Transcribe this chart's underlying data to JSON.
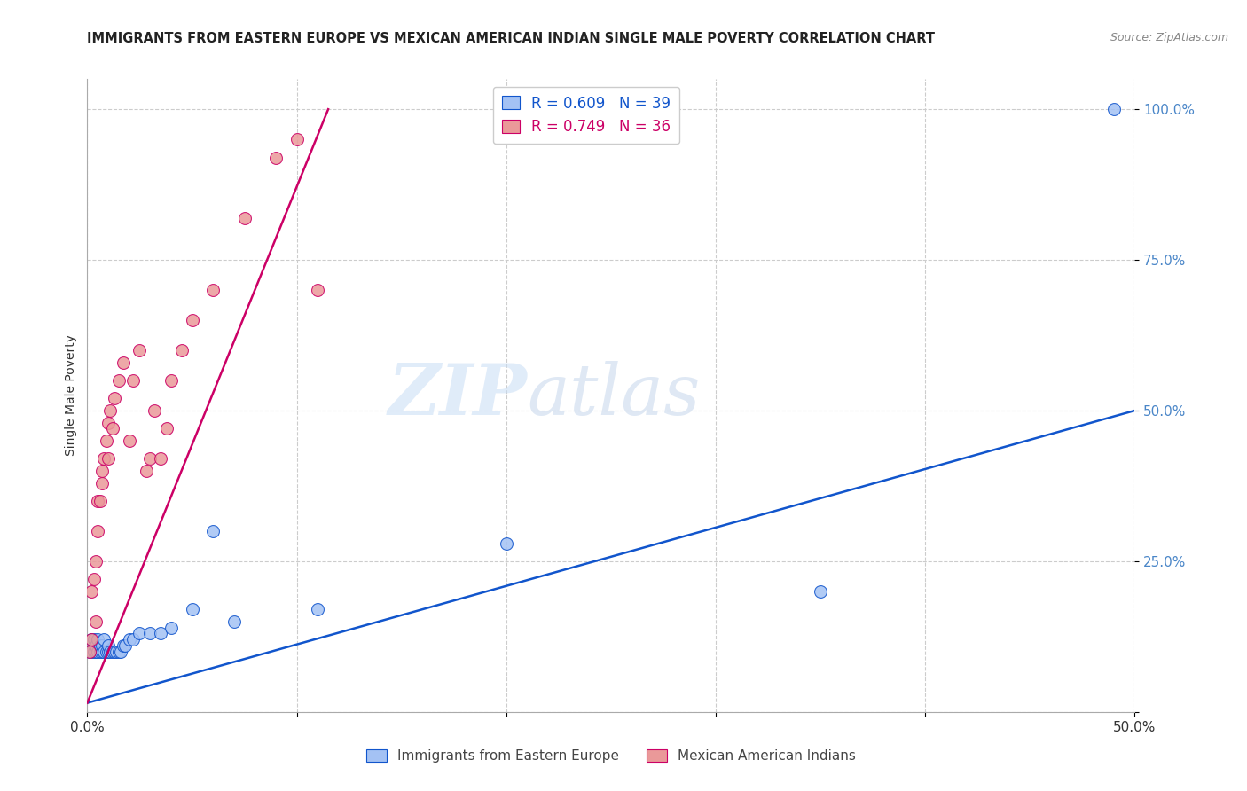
{
  "title": "IMMIGRANTS FROM EASTERN EUROPE VS MEXICAN AMERICAN INDIAN SINGLE MALE POVERTY CORRELATION CHART",
  "source": "Source: ZipAtlas.com",
  "ylabel": "Single Male Poverty",
  "xlim": [
    0.0,
    0.5
  ],
  "ylim": [
    0.0,
    1.05
  ],
  "watermark_zip": "ZIP",
  "watermark_atlas": "atlas",
  "legend_blue_label": "R = 0.609   N = 39",
  "legend_pink_label": "R = 0.749   N = 36",
  "legend_label_blue": "Immigrants from Eastern Europe",
  "legend_label_pink": "Mexican American Indians",
  "blue_color": "#a4c2f4",
  "pink_color": "#ea9999",
  "line_blue_color": "#1155cc",
  "line_pink_color": "#cc0066",
  "tick_color": "#4a86c8",
  "blue_scatter_x": [
    0.001,
    0.002,
    0.002,
    0.003,
    0.003,
    0.004,
    0.004,
    0.005,
    0.005,
    0.006,
    0.006,
    0.007,
    0.007,
    0.008,
    0.008,
    0.009,
    0.01,
    0.01,
    0.011,
    0.012,
    0.013,
    0.014,
    0.015,
    0.016,
    0.017,
    0.018,
    0.02,
    0.022,
    0.025,
    0.03,
    0.035,
    0.04,
    0.05,
    0.06,
    0.07,
    0.11,
    0.2,
    0.35,
    0.49
  ],
  "blue_scatter_y": [
    0.1,
    0.1,
    0.12,
    0.1,
    0.12,
    0.1,
    0.11,
    0.1,
    0.12,
    0.1,
    0.11,
    0.1,
    0.11,
    0.1,
    0.12,
    0.1,
    0.1,
    0.11,
    0.1,
    0.1,
    0.1,
    0.1,
    0.1,
    0.1,
    0.11,
    0.11,
    0.12,
    0.12,
    0.13,
    0.13,
    0.13,
    0.14,
    0.17,
    0.3,
    0.15,
    0.17,
    0.28,
    0.2,
    1.0
  ],
  "pink_scatter_x": [
    0.001,
    0.002,
    0.002,
    0.003,
    0.004,
    0.004,
    0.005,
    0.005,
    0.006,
    0.007,
    0.007,
    0.008,
    0.009,
    0.01,
    0.01,
    0.011,
    0.012,
    0.013,
    0.015,
    0.017,
    0.02,
    0.022,
    0.025,
    0.028,
    0.03,
    0.032,
    0.035,
    0.038,
    0.04,
    0.045,
    0.05,
    0.06,
    0.075,
    0.09,
    0.1,
    0.11
  ],
  "pink_scatter_y": [
    0.1,
    0.12,
    0.2,
    0.22,
    0.15,
    0.25,
    0.3,
    0.35,
    0.35,
    0.38,
    0.4,
    0.42,
    0.45,
    0.42,
    0.48,
    0.5,
    0.47,
    0.52,
    0.55,
    0.58,
    0.45,
    0.55,
    0.6,
    0.4,
    0.42,
    0.5,
    0.42,
    0.47,
    0.55,
    0.6,
    0.65,
    0.7,
    0.82,
    0.92,
    0.95,
    0.7
  ],
  "blue_line_x": [
    0.0,
    0.5
  ],
  "blue_line_y": [
    0.015,
    0.5
  ],
  "pink_line_x": [
    0.0,
    0.115
  ],
  "pink_line_y": [
    0.015,
    1.0
  ]
}
